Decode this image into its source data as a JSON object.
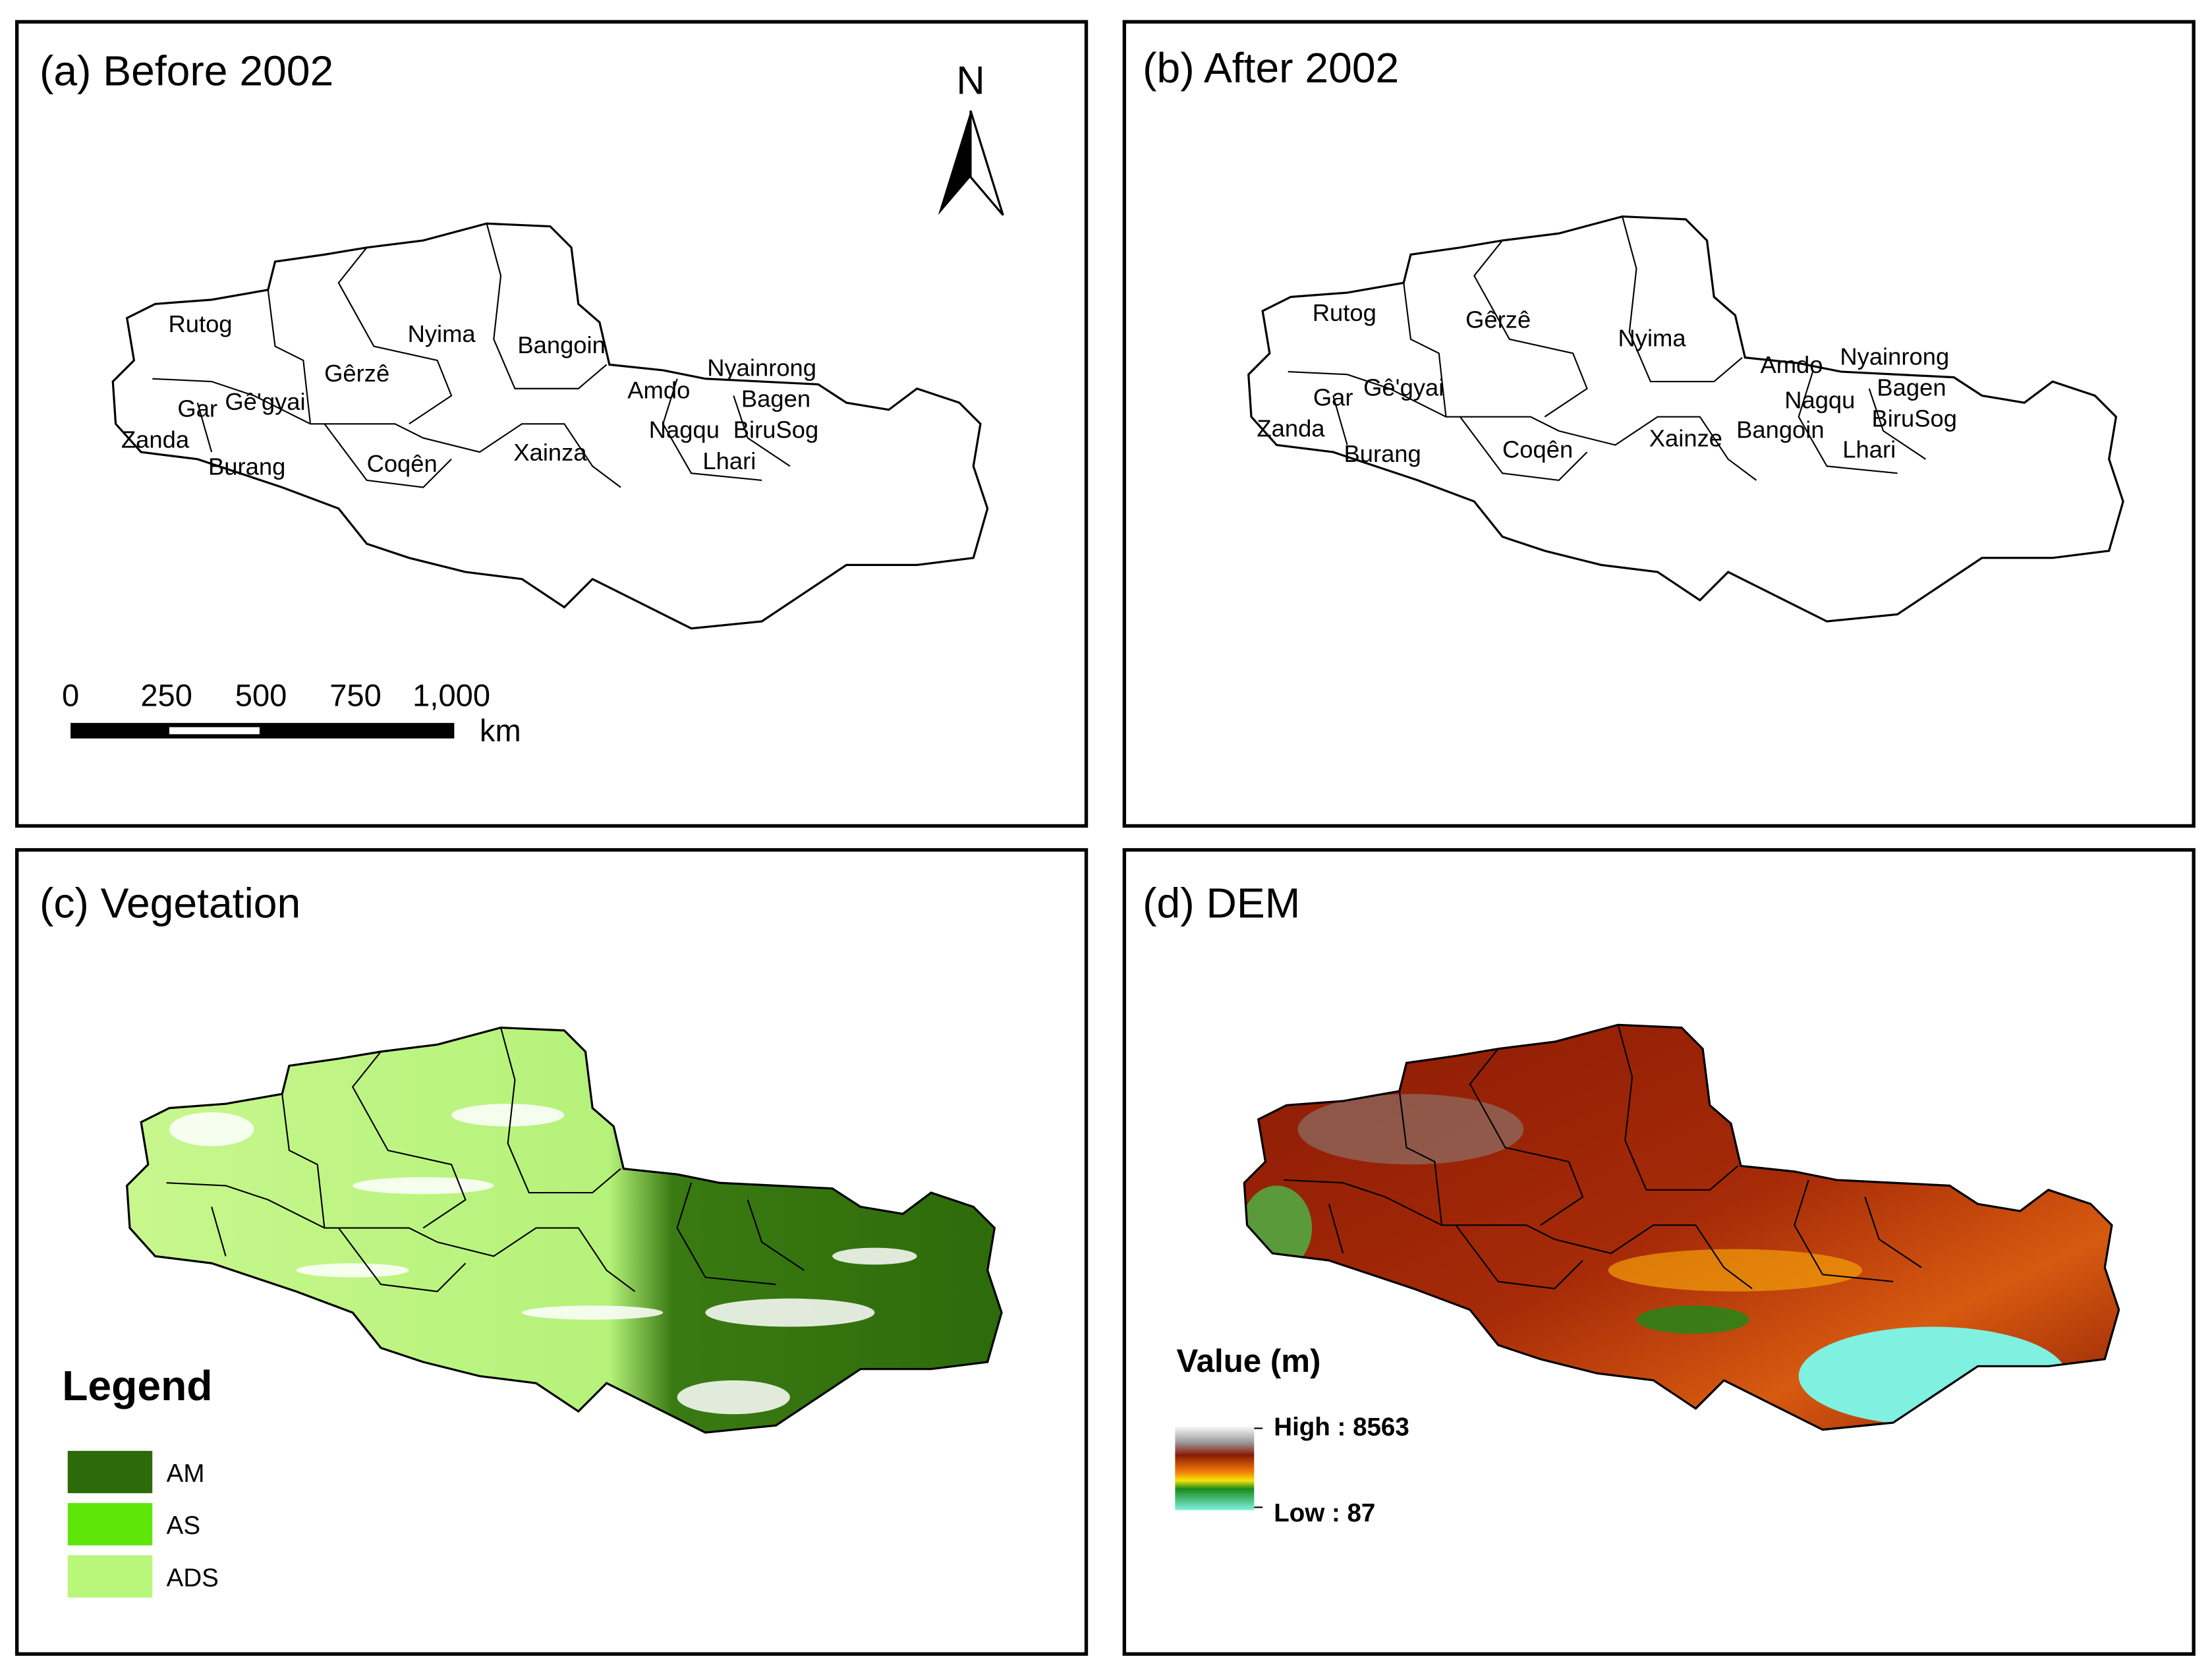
{
  "panels": [
    {
      "title": "(a) Before 2002",
      "labels": [
        "Rutog",
        "Nyima",
        "Bangoin",
        "Gêrzê",
        "Nyainrong",
        "Amdo",
        "Bagen",
        "Gar",
        "Gê'gyai",
        "Nagqu",
        "BiruSog",
        "Zanda",
        "Xainza",
        "Coqên",
        "Burang",
        "Lhari"
      ]
    },
    {
      "title": "(b) After 2002",
      "labels": [
        "Rutog",
        "Gêrzê",
        "Nyima",
        "Nyainrong",
        "Amdo",
        "Bagen",
        "Gar",
        "Gê'gyai",
        "Nagqu",
        "BiruSog",
        "Zanda",
        "Bangoin",
        "Xainze",
        "Coqên",
        "Burang",
        "Lhari"
      ]
    },
    {
      "title": "(c) Vegetation"
    },
    {
      "title": "(d) DEM"
    }
  ],
  "north_arrow": "N",
  "scale_bar": {
    "ticks": [
      "0",
      "250",
      "500",
      "750",
      "1,000"
    ],
    "unit": "km"
  },
  "vegetation_legend": {
    "title": "Legend",
    "items": [
      "AM",
      "AS",
      "ADS"
    ]
  },
  "dem_legend": {
    "title": "Value (m)",
    "high": "High : 8563",
    "low": "Low : 87"
  }
}
